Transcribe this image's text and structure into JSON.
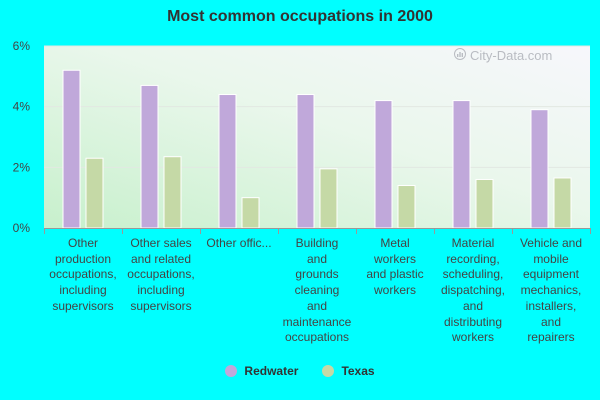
{
  "chart_data": {
    "type": "bar",
    "title": "Most common occupations in 2000",
    "categories": [
      "Other production occupations, including supervisors",
      "Other sales and related occupations, including supervisors",
      "Other offic...",
      "Building and grounds cleaning and maintenance occupations",
      "Metal workers and plastic workers",
      "Material recording, scheduling, dispatching, and distributing workers",
      "Vehicle and mobile equipment mechanics, installers, and repairers"
    ],
    "category_lines": [
      [
        "Other",
        "production",
        "occupations,",
        "including",
        "supervisors"
      ],
      [
        "Other sales",
        "and related",
        "occupations,",
        "including",
        "supervisors"
      ],
      [
        "Other offic..."
      ],
      [
        "Building",
        "and",
        "grounds",
        "cleaning",
        "and",
        "maintenance",
        "occupations"
      ],
      [
        "Metal",
        "workers",
        "and plastic",
        "workers"
      ],
      [
        "Material",
        "recording,",
        "scheduling,",
        "dispatching,",
        "and",
        "distributing",
        "workers"
      ],
      [
        "Vehicle and",
        "mobile",
        "equipment",
        "mechanics,",
        "installers,",
        "and",
        "repairers"
      ]
    ],
    "series": [
      {
        "name": "Redwater",
        "color": "#c0a8da",
        "values": [
          5.2,
          4.7,
          4.4,
          4.4,
          4.2,
          4.2,
          3.9
        ]
      },
      {
        "name": "Texas",
        "color": "#c5d9a6",
        "values": [
          2.3,
          2.35,
          1.0,
          1.95,
          1.4,
          1.6,
          1.65
        ]
      }
    ],
    "y_ticks": [
      "0%",
      "2%",
      "4%",
      "6%"
    ],
    "ylim": [
      0,
      6
    ],
    "unit": "%",
    "grid": true,
    "legend_position": "bottom-center"
  },
  "watermark": {
    "text": "City-Data.com",
    "icon": "chart-icon"
  }
}
